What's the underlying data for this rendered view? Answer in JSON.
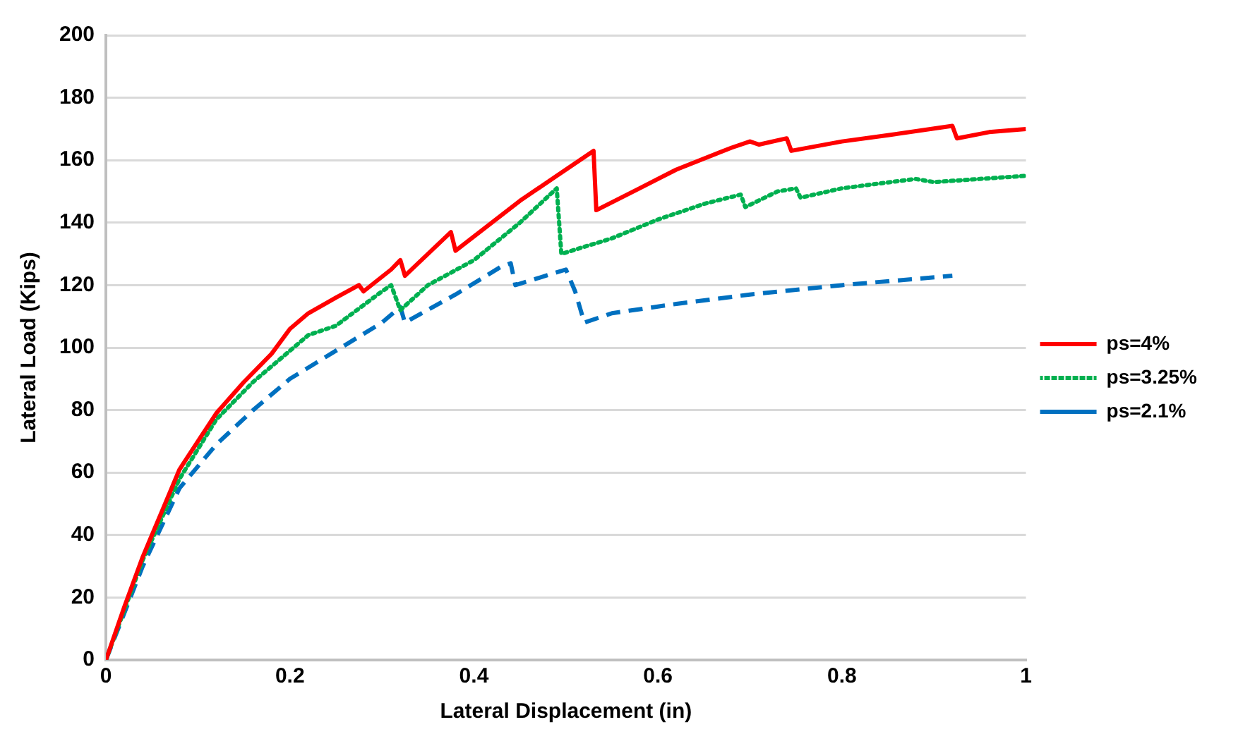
{
  "chart_data": {
    "type": "line",
    "xlabel": "Lateral Displacement (in)",
    "ylabel": "Lateral Load (Kips)",
    "xlim": [
      0,
      1
    ],
    "xticks": [
      0,
      0.2,
      0.4,
      0.6,
      0.8,
      1
    ],
    "ylim": [
      0,
      200
    ],
    "yticks": [
      0,
      20,
      40,
      60,
      80,
      100,
      120,
      140,
      160,
      180,
      200
    ],
    "grid": "y",
    "legend": "right",
    "marker": "none",
    "series": [
      {
        "name": "ps=4%",
        "color": "#ff0000",
        "line_style": "solid",
        "x": [
          0,
          0.02,
          0.04,
          0.06,
          0.08,
          0.1,
          0.12,
          0.15,
          0.18,
          0.2,
          0.22,
          0.25,
          0.275,
          0.28,
          0.31,
          0.32,
          0.325,
          0.375,
          0.38,
          0.45,
          0.5,
          0.53,
          0.533,
          0.58,
          0.62,
          0.68,
          0.7,
          0.71,
          0.74,
          0.745,
          0.8,
          0.85,
          0.92,
          0.925,
          0.96,
          1
        ],
        "values": [
          0,
          17,
          33,
          47,
          61,
          70,
          79,
          89,
          98,
          106,
          111,
          116,
          120,
          118,
          125,
          128,
          123,
          137,
          131,
          147,
          157,
          163,
          144,
          151,
          157,
          164,
          166,
          165,
          167,
          163,
          166,
          168,
          171,
          167,
          169,
          170
        ]
      },
      {
        "name": "ps=3.25%",
        "color": "#00b050",
        "line_style": "dotted",
        "x": [
          0,
          0.04,
          0.08,
          0.12,
          0.16,
          0.2,
          0.22,
          0.25,
          0.3,
          0.31,
          0.32,
          0.35,
          0.4,
          0.45,
          0.49,
          0.495,
          0.55,
          0.6,
          0.65,
          0.69,
          0.695,
          0.73,
          0.75,
          0.755,
          0.8,
          0.88,
          0.9,
          0.95,
          1
        ],
        "values": [
          0,
          32,
          58,
          77,
          89,
          99,
          104,
          107,
          118,
          120,
          112,
          120,
          128,
          140,
          151,
          130,
          135,
          141,
          146,
          149,
          145,
          150,
          151,
          148,
          151,
          154,
          153,
          154,
          155
        ]
      },
      {
        "name": "ps=2.1%",
        "color": "#0070c0",
        "line_style": "dashed",
        "x": [
          0,
          0.04,
          0.08,
          0.12,
          0.16,
          0.2,
          0.25,
          0.3,
          0.32,
          0.325,
          0.38,
          0.43,
          0.44,
          0.445,
          0.5,
          0.51,
          0.52,
          0.55,
          0.62,
          0.7,
          0.8,
          0.92
        ],
        "values": [
          0,
          30,
          55,
          69,
          80,
          90,
          99,
          108,
          113,
          108,
          117,
          126,
          127,
          120,
          125,
          118,
          108,
          111,
          114,
          117,
          120,
          123
        ]
      }
    ]
  }
}
